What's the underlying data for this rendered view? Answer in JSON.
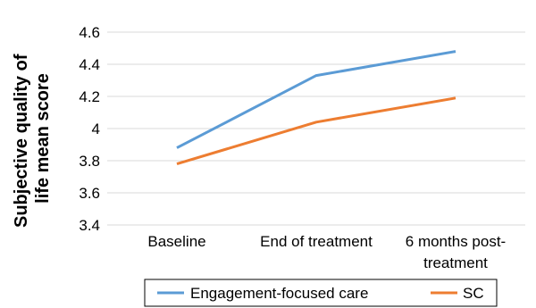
{
  "chart_data": {
    "type": "line",
    "title": "",
    "xlabel": "",
    "ylabel_lines": [
      "Subjective quality of",
      "life mean score"
    ],
    "categories": [
      [
        "Baseline"
      ],
      [
        "End of treatment"
      ],
      [
        "6 months post-",
        "treatment"
      ]
    ],
    "ylim": [
      3.4,
      4.6
    ],
    "yticks": [
      3.4,
      3.6,
      3.8,
      4.0,
      4.2,
      4.4,
      4.6
    ],
    "ytick_labels": [
      "3.4",
      "3.6",
      "3.8",
      "4",
      "4.2",
      "4.4",
      "4.6"
    ],
    "grid": true,
    "legend_position": "bottom",
    "series": [
      {
        "name": "Engagement-focused care",
        "color": "#5b9bd5",
        "values": [
          3.88,
          4.33,
          4.48
        ]
      },
      {
        "name": "SC",
        "color": "#ed7d31",
        "values": [
          3.78,
          4.04,
          4.19
        ]
      }
    ]
  }
}
